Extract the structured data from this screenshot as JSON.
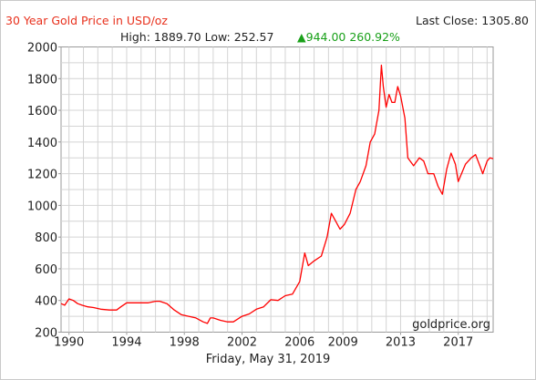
{
  "chart_data": {
    "type": "line",
    "title": "30 Year Gold Price in USD/oz",
    "last_close": "Last Close: 1305.80",
    "stats": {
      "high_low": "High: 1889.70 Low: 252.57",
      "change": "▲944.00 260.92%"
    },
    "footer_date": "Friday, May 31, 2019",
    "watermark": "goldprice.org",
    "xlim": [
      1989.45,
      2019.42
    ],
    "ylim": [
      200,
      2000
    ],
    "x_ticks": [
      1990,
      1994,
      1998,
      2002,
      2006,
      2009,
      2013,
      2017
    ],
    "x_tick_labels": [
      "1990",
      "1994",
      "1998",
      "2002",
      "2006",
      "2009",
      "2013",
      "2017"
    ],
    "y_ticks": [
      200,
      400,
      600,
      800,
      1000,
      1200,
      1400,
      1600,
      1800,
      2000
    ],
    "y_tick_labels": [
      "200",
      "400",
      "600",
      "800",
      "1000",
      "1200",
      "1400",
      "1600",
      "1800",
      "2000"
    ],
    "grid": true,
    "series": [
      {
        "color": "#ff0000",
        "x": [
          1989.45,
          1989.7,
          1990.0,
          1990.3,
          1990.6,
          1990.9,
          1991.3,
          1991.7,
          1992.2,
          1992.8,
          1993.3,
          1993.6,
          1994.0,
          1994.5,
          1995.0,
          1995.5,
          1996.0,
          1996.3,
          1996.8,
          1997.3,
          1997.8,
          1998.3,
          1998.8,
          1999.3,
          1999.6,
          1999.8,
          2000.0,
          2000.5,
          2001.0,
          2001.4,
          2002.0,
          2002.5,
          2003.0,
          2003.5,
          2004.0,
          2004.5,
          2005.0,
          2005.5,
          2006.0,
          2006.35,
          2006.6,
          2007.0,
          2007.5,
          2007.9,
          2008.2,
          2008.5,
          2008.8,
          2009.1,
          2009.5,
          2009.9,
          2010.2,
          2010.6,
          2010.9,
          2011.2,
          2011.5,
          2011.67,
          2011.8,
          2012.0,
          2012.2,
          2012.4,
          2012.6,
          2012.8,
          2013.0,
          2013.3,
          2013.5,
          2013.9,
          2014.3,
          2014.6,
          2014.9,
          2015.3,
          2015.6,
          2015.9,
          2016.2,
          2016.5,
          2016.8,
          2017.0,
          2017.5,
          2017.9,
          2018.2,
          2018.5,
          2018.7,
          2019.0,
          2019.2,
          2019.42
        ],
        "y": [
          380,
          370,
          410,
          400,
          380,
          370,
          360,
          355,
          345,
          340,
          340,
          360,
          385,
          385,
          385,
          385,
          395,
          395,
          380,
          340,
          310,
          300,
          290,
          265,
          255,
          290,
          290,
          275,
          265,
          265,
          300,
          315,
          345,
          360,
          405,
          400,
          430,
          440,
          520,
          700,
          620,
          650,
          680,
          800,
          950,
          900,
          850,
          880,
          950,
          1100,
          1150,
          1250,
          1400,
          1450,
          1600,
          1885,
          1750,
          1620,
          1700,
          1650,
          1650,
          1750,
          1690,
          1550,
          1300,
          1250,
          1300,
          1280,
          1200,
          1200,
          1120,
          1070,
          1230,
          1330,
          1260,
          1150,
          1260,
          1300,
          1320,
          1250,
          1200,
          1280,
          1300,
          1295
        ]
      }
    ]
  }
}
